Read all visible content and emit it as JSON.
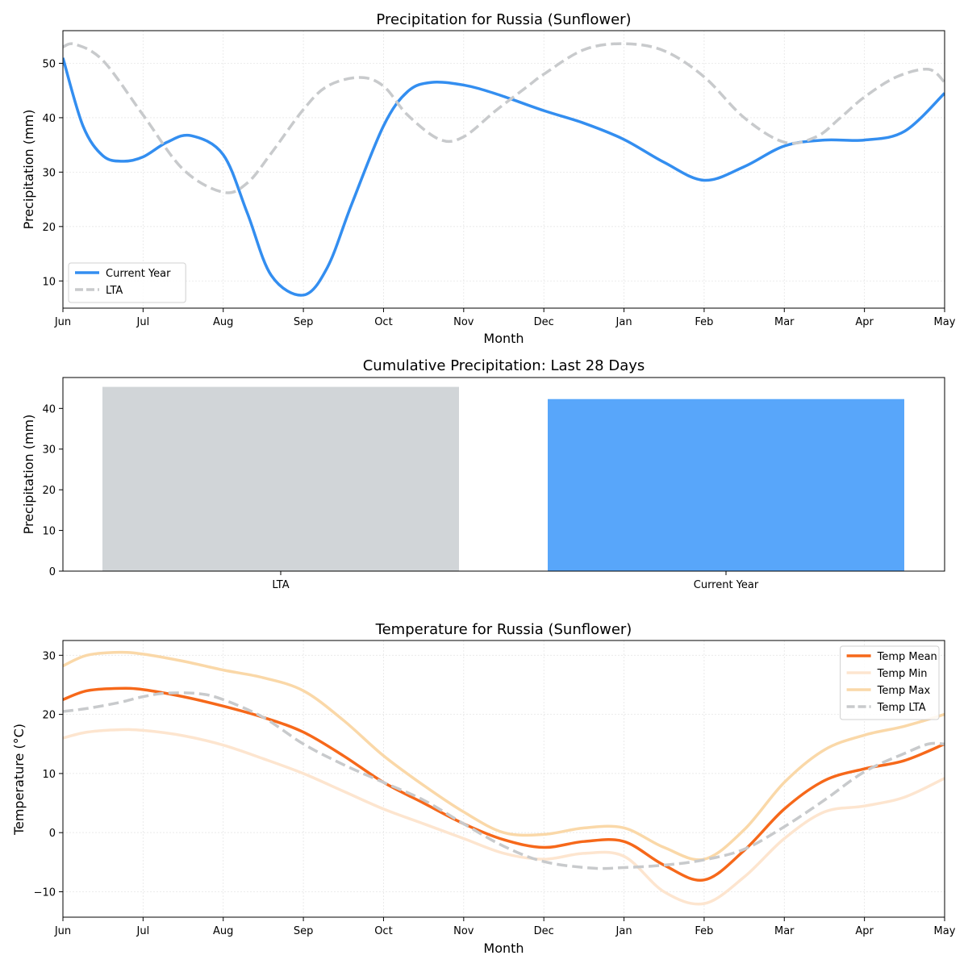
{
  "chart_data": [
    {
      "type": "line",
      "title": "Precipitation for Russia (Sunflower)",
      "xlabel": "Month",
      "ylabel": "Precipitation (mm)",
      "x_ticks": [
        "Jun",
        "Jul",
        "Aug",
        "Sep",
        "Oct",
        "Nov",
        "Dec",
        "Jan",
        "Feb",
        "Mar",
        "Apr",
        "May"
      ],
      "xlim": [
        0,
        11
      ],
      "ylim": [
        5,
        56
      ],
      "y_ticks": [
        10,
        20,
        30,
        40,
        50
      ],
      "grid": true,
      "legend_position": "lower-left",
      "series": [
        {
          "name": "Current Year",
          "color": "#338ef0",
          "dash": "solid",
          "x": [
            0,
            0.25,
            0.5,
            0.75,
            1,
            1.3,
            1.6,
            2,
            2.3,
            2.6,
            3,
            3.3,
            3.6,
            4,
            4.3,
            4.6,
            5,
            5.4,
            6,
            6.5,
            7,
            7.5,
            8,
            8.5,
            9,
            9.5,
            10,
            10.5,
            11
          ],
          "y": [
            51,
            38.5,
            33,
            32,
            32.8,
            35.5,
            36.7,
            33.2,
            22.5,
            11,
            7.4,
            12.5,
            24,
            38.5,
            44.8,
            46.5,
            46,
            44.4,
            41.3,
            39,
            36,
            31.8,
            28.5,
            31,
            34.8,
            35.9,
            35.9,
            37.5,
            44.5
          ]
        },
        {
          "name": "LTA",
          "color": "#c8cacc",
          "dash": "dashed",
          "x": [
            0,
            0.15,
            0.5,
            1,
            1.5,
            2,
            2.3,
            2.6,
            3,
            3.3,
            3.7,
            4,
            4.3,
            4.7,
            5,
            5.4,
            5.8,
            6,
            6.5,
            7,
            7.5,
            8,
            8.5,
            9,
            9.4,
            9.7,
            10,
            10.4,
            10.8,
            11
          ],
          "y": [
            53,
            53.5,
            50.5,
            40.5,
            30.5,
            26.3,
            28,
            33.5,
            41.5,
            45.8,
            47.4,
            45.8,
            40.5,
            36,
            36.5,
            41.3,
            45.8,
            48,
            52.5,
            53.6,
            52.3,
            47.5,
            40,
            35.5,
            36.5,
            40,
            43.8,
            47.5,
            48.9,
            46.5
          ]
        }
      ]
    },
    {
      "type": "bar",
      "title": "Cumulative Precipitation: Last 28 Days",
      "xlabel": "",
      "ylabel": "Precipitation (mm)",
      "categories": [
        "LTA",
        "Current Year"
      ],
      "values": [
        45.3,
        42.3
      ],
      "colors": [
        "#d1d5d8",
        "#58a6fa"
      ],
      "ylim": [
        0,
        47.6
      ],
      "y_ticks": [
        0,
        10,
        20,
        30,
        40
      ],
      "grid": false
    },
    {
      "type": "line",
      "title": "Temperature for Russia (Sunflower)",
      "xlabel": "Month",
      "ylabel": "Temperature (°C)",
      "x_ticks": [
        "Jun",
        "Jul",
        "Aug",
        "Sep",
        "Oct",
        "Nov",
        "Dec",
        "Jan",
        "Feb",
        "Mar",
        "Apr",
        "May"
      ],
      "xlim": [
        0,
        11
      ],
      "ylim": [
        -14.3,
        32.5
      ],
      "y_ticks": [
        -10,
        0,
        10,
        20,
        30
      ],
      "y_tick_labels": [
        "−10",
        "0",
        "10",
        "20",
        "30"
      ],
      "grid": true,
      "legend_position": "upper-right",
      "series": [
        {
          "name": "Temp Mean",
          "color": "#f6681a",
          "dash": "solid",
          "x": [
            0,
            0.3,
            0.7,
            1,
            1.5,
            2,
            2.5,
            3,
            3.5,
            4,
            4.5,
            5,
            5.5,
            6,
            6.5,
            7,
            7.5,
            8,
            8.5,
            9,
            9.5,
            10,
            10.5,
            11
          ],
          "y": [
            22.5,
            24,
            24.4,
            24.2,
            23,
            21.4,
            19.5,
            17,
            13,
            8.5,
            5,
            1.5,
            -1.2,
            -2.5,
            -1.5,
            -1.5,
            -5.5,
            -8,
            -3,
            4,
            8.8,
            10.8,
            12.2,
            15
          ]
        },
        {
          "name": "Temp Min",
          "color": "#fde5cf",
          "dash": "solid",
          "x": [
            0,
            0.3,
            0.7,
            1,
            1.5,
            2,
            2.5,
            3,
            3.5,
            4,
            4.5,
            5,
            5.5,
            6,
            6.5,
            7,
            7.5,
            8,
            8.5,
            9,
            9.5,
            10,
            10.5,
            11
          ],
          "y": [
            16,
            17,
            17.4,
            17.3,
            16.4,
            14.8,
            12.5,
            10,
            7,
            4,
            1.5,
            -1,
            -3.5,
            -4.5,
            -3.5,
            -4,
            -10,
            -12,
            -7.5,
            -1,
            3.5,
            4.5,
            6,
            9.2
          ]
        },
        {
          "name": "Temp Max",
          "color": "#fad8a8",
          "dash": "solid",
          "x": [
            0,
            0.3,
            0.7,
            1,
            1.5,
            2,
            2.5,
            3,
            3.5,
            4,
            4.5,
            5,
            5.5,
            6,
            6.5,
            7,
            7.5,
            8,
            8.5,
            9,
            9.5,
            10,
            10.5,
            11
          ],
          "y": [
            28.2,
            30,
            30.5,
            30.2,
            29,
            27.5,
            26.2,
            24,
            19,
            13,
            8,
            3.5,
            0,
            -0.3,
            0.8,
            0.8,
            -2.5,
            -4.5,
            0.5,
            8.5,
            14,
            16.5,
            18,
            20
          ]
        },
        {
          "name": "Temp LTA",
          "color": "#c8cacc",
          "dash": "dashed",
          "x": [
            0,
            0.3,
            0.7,
            1,
            1.3,
            1.7,
            2,
            2.5,
            3,
            3.5,
            4,
            4.5,
            5,
            5.5,
            6,
            6.6,
            7,
            7.5,
            8,
            8.5,
            9,
            9.5,
            10,
            10.5,
            10.8,
            11
          ],
          "y": [
            20.5,
            21,
            22,
            23,
            23.6,
            23.5,
            22.5,
            19.5,
            15,
            11.5,
            8.5,
            5.5,
            1.5,
            -2.3,
            -4.9,
            -6,
            -5.9,
            -5.5,
            -4.6,
            -2.8,
            1,
            5.5,
            10.3,
            13.4,
            15,
            15
          ]
        }
      ]
    }
  ]
}
